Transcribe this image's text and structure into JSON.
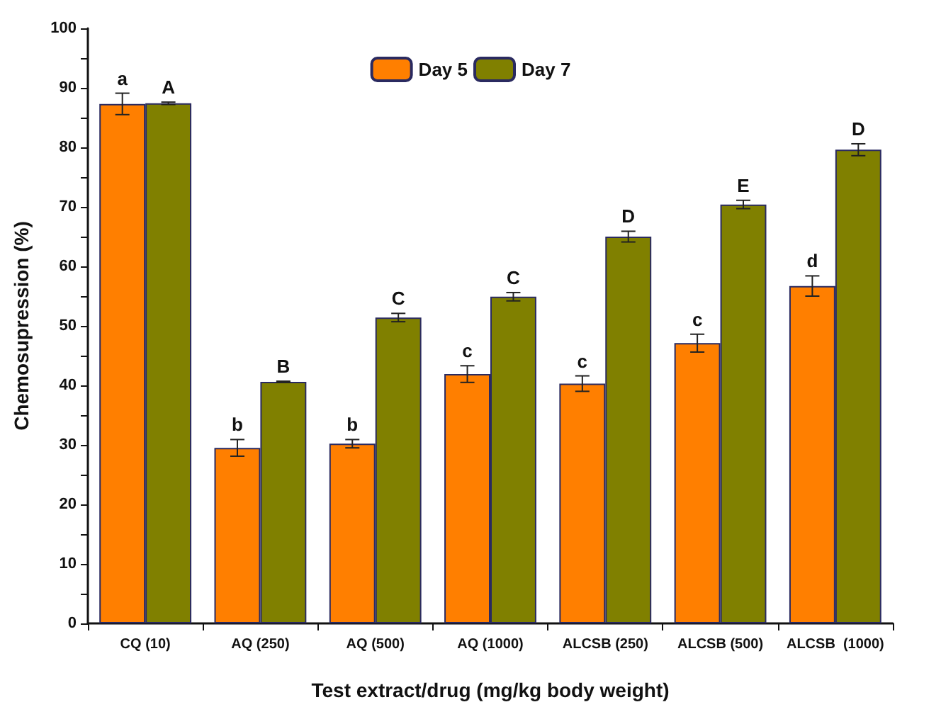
{
  "chart_data": {
    "type": "bar",
    "xlabel": "Test extract/drug (mg/kg body weight)",
    "ylabel": "Chemosupression (%)",
    "categories": [
      "CQ (10)",
      "AQ (250)",
      "AQ (500)",
      "AQ (1000)",
      "ALCSB (250)",
      "ALCSB (500)",
      "ALCSB  (1000)"
    ],
    "series": [
      {
        "name": "Day 5",
        "color": "#ff7f00",
        "values": [
          87.3,
          29.5,
          30.2,
          41.9,
          40.3,
          47.1,
          56.7
        ],
        "errors": [
          1.8,
          1.4,
          0.7,
          1.4,
          1.3,
          1.5,
          1.7
        ]
      },
      {
        "name": "Day 7",
        "color": "#808000",
        "values": [
          87.4,
          40.6,
          51.4,
          54.9,
          65.0,
          70.4,
          79.6
        ],
        "errors": [
          0.2,
          0.1,
          0.7,
          0.7,
          0.9,
          0.7,
          1.0
        ]
      }
    ],
    "ylim": [
      0,
      100
    ],
    "yticks": [
      0,
      {
        "value": 5,
        "label": null
      },
      10,
      {
        "value": 15,
        "label": null
      },
      20,
      {
        "value": 25,
        "label": null
      },
      30,
      {
        "value": 35,
        "label": null
      },
      40,
      {
        "value": 45,
        "label": null
      },
      50,
      {
        "value": 55,
        "label": null
      },
      60,
      {
        "value": 65,
        "label": null
      },
      70,
      {
        "value": 75,
        "label": null
      },
      80,
      {
        "value": 85,
        "label": null
      },
      90,
      {
        "value": 95,
        "label": null
      },
      100
    ],
    "annotations": [
      {
        "text": "a",
        "x": "CQ (10)",
        "y": 87.3
      },
      {
        "text": "A",
        "x": "CQ (10)",
        "y": 87.4
      },
      {
        "text": "b",
        "x": "AQ (250)",
        "y": 29.5
      },
      {
        "text": "B",
        "x": "AQ (250)",
        "y": 40.6
      },
      {
        "text": "b",
        "x": "AQ (500)",
        "y": 30.2
      },
      {
        "text": "C",
        "x": "AQ (500)",
        "y": 51.4
      },
      {
        "text": "c",
        "x": "AQ (1000)",
        "y": 41.9
      },
      {
        "text": "C",
        "x": "AQ (1000)",
        "y": 54.9
      },
      {
        "text": "c",
        "x": "ALCSB (250)",
        "y": 40.3
      },
      {
        "text": "D",
        "x": "ALCSB (250)",
        "y": 65.0
      },
      {
        "text": "c",
        "x": "ALCSB (500)",
        "y": 47.1
      },
      {
        "text": "E",
        "x": "ALCSB (500)",
        "y": 70.4
      },
      {
        "text": "d",
        "x": "ALCSB  (1000)",
        "y": 56.7
      },
      {
        "text": "D",
        "x": "ALCSB  (1000)",
        "y": 79.6
      }
    ],
    "grid": false,
    "legend": "top"
  }
}
